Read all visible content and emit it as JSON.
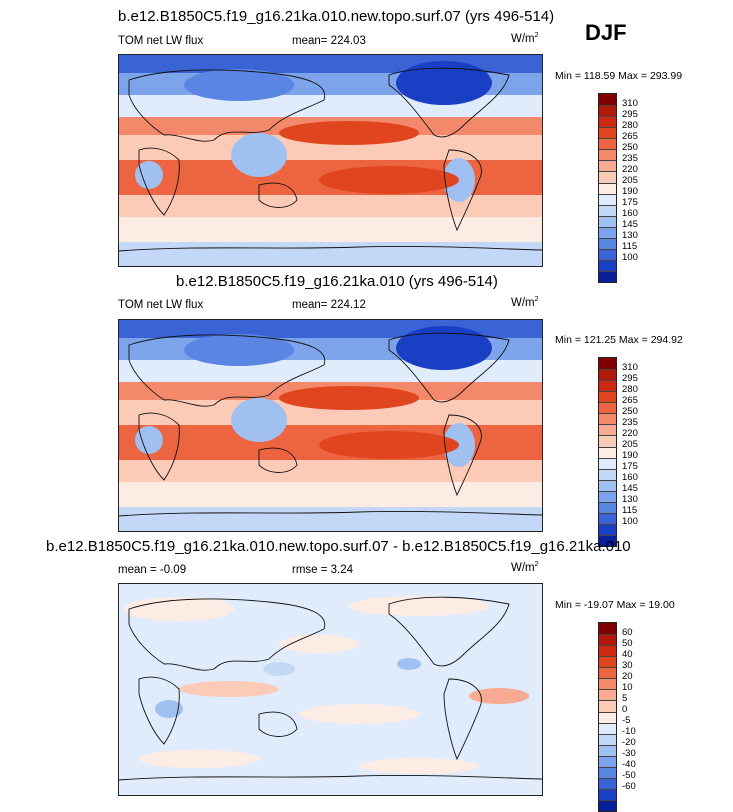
{
  "season": "DJF",
  "panels": [
    {
      "title": "b.e12.B1850C5.f19_g16.21ka.010.new.topo.surf.07 (yrs 496-514)",
      "left_label": "TOM net LW flux",
      "center_label": "mean= 224.03",
      "units_base": "W/m",
      "units_exp": "2",
      "minmax": "Min = 118.59 Max = 293.99",
      "colorbar_labels": [
        "310",
        "295",
        "280",
        "265",
        "250",
        "235",
        "220",
        "205",
        "190",
        "175",
        "160",
        "145",
        "130",
        "115",
        "100"
      ]
    },
    {
      "title": "b.e12.B1850C5.f19_g16.21ka.010 (yrs 496-514)",
      "left_label": "TOM net LW flux",
      "center_label": "mean= 224.12",
      "units_base": "W/m",
      "units_exp": "2",
      "minmax": "Min = 121.25 Max = 294.92",
      "colorbar_labels": [
        "310",
        "295",
        "280",
        "265",
        "250",
        "235",
        "220",
        "205",
        "190",
        "175",
        "160",
        "145",
        "130",
        "115",
        "100"
      ]
    },
    {
      "title": "b.e12.B1850C5.f19_g16.21ka.010.new.topo.surf.07 - b.e12.B1850C5.f19_g16.21ka.010",
      "left_label": "mean =  -0.09",
      "center_label": "rmse =   3.24",
      "units_base": "W/m",
      "units_exp": "2",
      "minmax": "Min = -19.07 Max =  19.00",
      "colorbar_labels": [
        "60",
        "50",
        "40",
        "30",
        "20",
        "10",
        "5",
        "0",
        "-5",
        "-10",
        "-20",
        "-30",
        "-40",
        "-50",
        "-60"
      ]
    }
  ],
  "colors": {
    "palette": [
      "#7f0000",
      "#b2180c",
      "#cc2a12",
      "#e0451f",
      "#ec6440",
      "#f4886a",
      "#f8ab92",
      "#fccbb8",
      "#fdece4",
      "#e0ecfc",
      "#c3d8f7",
      "#a0c0f1",
      "#7da4ea",
      "#5b85e2",
      "#3a63d6",
      "#1b3fc4",
      "#081e9a"
    ]
  },
  "chart_data": [
    {
      "type": "heatmap",
      "title": "b.e12.B1850C5.f19_g16.21ka.010.new.topo.surf.07 (yrs 496-514)",
      "variable": "TOM net LW flux",
      "units": "W/m2",
      "mean": 224.03,
      "min": 118.59,
      "max": 293.99,
      "contour_levels": [
        100,
        115,
        130,
        145,
        160,
        175,
        190,
        205,
        220,
        235,
        250,
        265,
        280,
        295,
        310
      ]
    },
    {
      "type": "heatmap",
      "title": "b.e12.B1850C5.f19_g16.21ka.010 (yrs 496-514)",
      "variable": "TOM net LW flux",
      "units": "W/m2",
      "mean": 224.12,
      "min": 121.25,
      "max": 294.92,
      "contour_levels": [
        100,
        115,
        130,
        145,
        160,
        175,
        190,
        205,
        220,
        235,
        250,
        265,
        280,
        295,
        310
      ]
    },
    {
      "type": "heatmap",
      "title": "b.e12.B1850C5.f19_g16.21ka.010.new.topo.surf.07 - b.e12.B1850C5.f19_g16.21ka.010",
      "variable": "difference",
      "units": "W/m2",
      "mean": -0.09,
      "rmse": 3.24,
      "min": -19.07,
      "max": 19.0,
      "contour_levels": [
        -60,
        -50,
        -40,
        -30,
        -20,
        -10,
        -5,
        0,
        5,
        10,
        20,
        30,
        40,
        50,
        60
      ]
    }
  ]
}
